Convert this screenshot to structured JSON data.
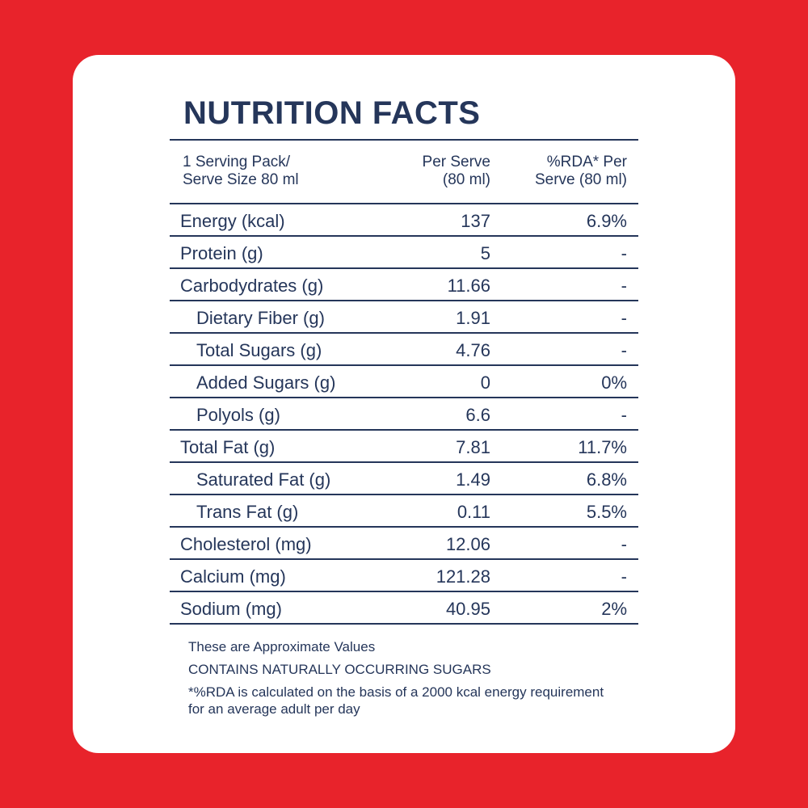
{
  "title": "NUTRITION FACTS",
  "table": {
    "header": [
      [
        "1 Serving Pack/",
        "Serve Size 80 ml"
      ],
      [
        "Per Serve",
        "(80 ml)"
      ],
      [
        "%RDA* Per",
        "Serve (80 ml)"
      ]
    ],
    "rows": [
      {
        "label": "Energy (kcal)",
        "per_serve": "137",
        "rda": "6.9%"
      },
      {
        "label": "Protein (g)",
        "per_serve": "5",
        "rda": "-"
      },
      {
        "label": "Carbodydrates (g)",
        "per_serve": "11.66",
        "rda": "-",
        "children": [
          {
            "label": "Dietary Fiber (g)",
            "per_serve": "1.91",
            "rda": "-"
          },
          {
            "label": "Total Sugars (g)",
            "per_serve": "4.76",
            "rda": "-"
          },
          {
            "label": "Added Sugars (g)",
            "per_serve": "0",
            "rda": "0%"
          },
          {
            "label": "Polyols (g)",
            "per_serve": "6.6",
            "rda": "-"
          }
        ]
      },
      {
        "label": "Total Fat (g)",
        "per_serve": "7.81",
        "rda": "11.7%",
        "children": [
          {
            "label": "Saturated Fat (g)",
            "per_serve": "1.49",
            "rda": "6.8%"
          },
          {
            "label": "Trans Fat (g)",
            "per_serve": "0.11",
            "rda": "5.5%"
          }
        ]
      },
      {
        "label": "Cholesterol (mg)",
        "per_serve": "12.06",
        "rda": "-"
      },
      {
        "label": "Calcium (mg)",
        "per_serve": "121.28",
        "rda": "-"
      },
      {
        "label": "Sodium (mg)",
        "per_serve": "40.95",
        "rda": "2%"
      }
    ]
  },
  "notes": [
    "These are Approximate Values",
    "CONTAINS NATURALLY OCCURRING SUGARS",
    "*%RDA is calculated on the basis of a 2000 kcal energy requirement for an average adult per day"
  ]
}
